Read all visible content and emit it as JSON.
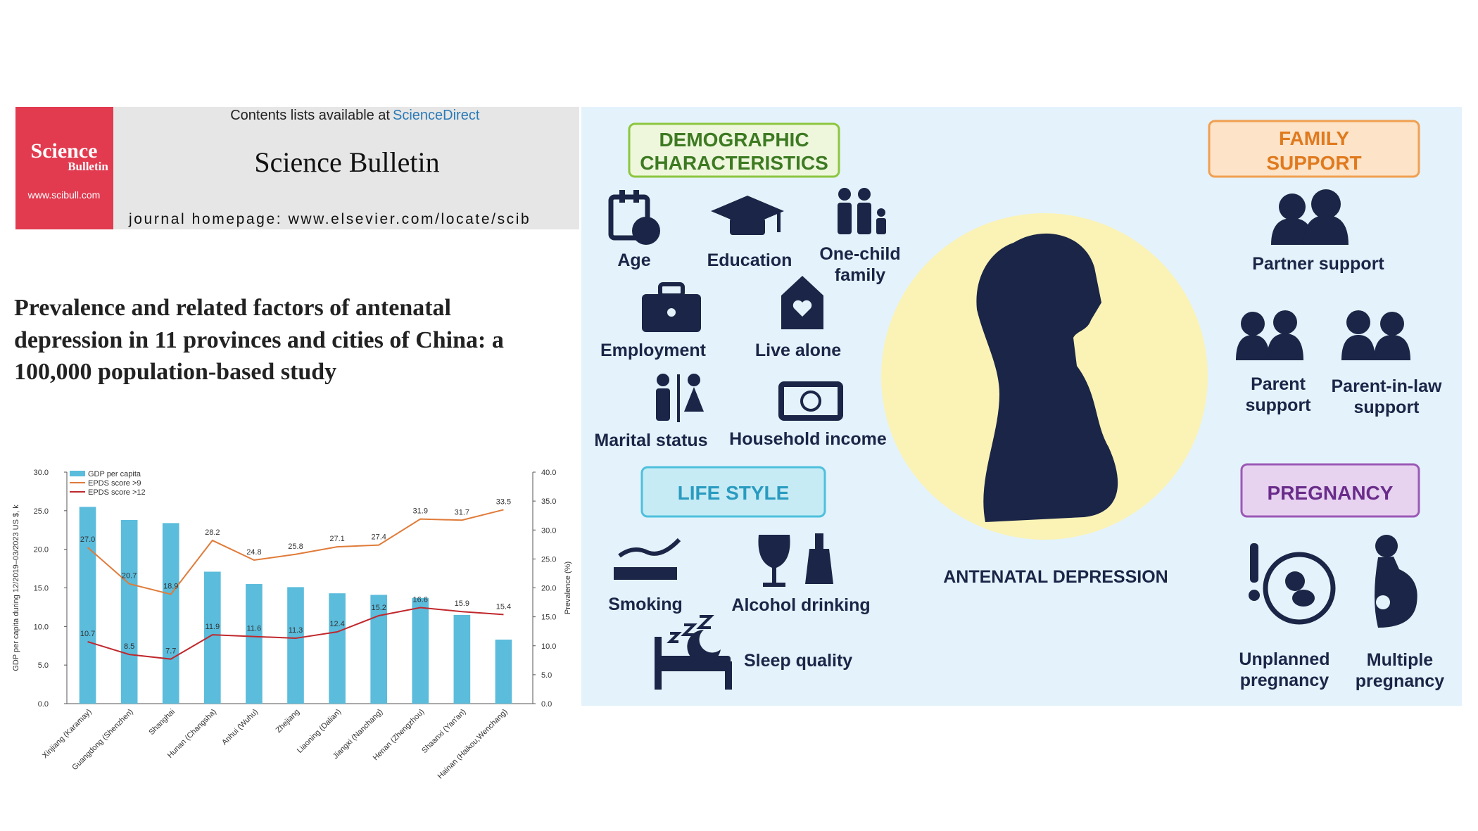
{
  "header": {
    "logo": {
      "line1": "Science",
      "line2": "Bulletin",
      "url": "www.scibull.com"
    },
    "contents_prefix": "Contents lists available at",
    "contents_link": "ScienceDirect",
    "journal": "Science Bulletin",
    "homepage": "journal homepage: www.elsevier.com/locate/scib"
  },
  "article_title": [
    "Prevalence and related factors of antenatal",
    "depression in 11 provinces and cities of China: a",
    "100,000 population-based study"
  ],
  "chart_data": {
    "type": "bar",
    "categories": [
      "Xinjiang (Karamay)",
      "Guangdong (Shenzhen)",
      "Shanghai",
      "Hunan (Changsha)",
      "Anhui (Wuhu)",
      "Zhejiang",
      "Liaoning (Dalian)",
      "Jiangxi (Nanchang)",
      "Henan (Zhengzhou)",
      "Shaanxi (Yan'an)",
      "Hainan (Haikou,Wenchang)"
    ],
    "series": [
      {
        "name": "GDP per capita",
        "type": "bar",
        "color": "#5bbcdc",
        "values": [
          25.5,
          23.8,
          23.4,
          17.1,
          15.5,
          15.1,
          14.3,
          14.1,
          13.7,
          11.5,
          8.3
        ]
      },
      {
        "name": "EPDS score >9",
        "type": "line",
        "axis": "y2",
        "color": "#e07b39",
        "values": [
          27,
          20.7,
          18.9,
          28.2,
          24.8,
          25.8,
          27.1,
          27.4,
          31.9,
          31.7,
          33.5
        ],
        "value_labels": [
          "27.0",
          "20.7",
          "18.9",
          "28.2",
          "24.8",
          "25.8",
          "27.1",
          "27.4",
          "31.9",
          "31.7",
          "33.5"
        ]
      },
      {
        "name": "EPDS score >12",
        "type": "line",
        "axis": "y2",
        "color": "#c0282d",
        "values": [
          10.7,
          8.5,
          7.7,
          11.9,
          11.6,
          11.3,
          12.4,
          15.2,
          16.6,
          15.9,
          15.4
        ],
        "value_labels": [
          "10.7",
          "8.5",
          "7.7",
          "11.9",
          "11.6",
          "11.3",
          "12.4",
          "15.2",
          "16.6",
          "15.9",
          "15.4"
        ]
      }
    ],
    "ylabel": "GDP per capita during 12/2019–03/2023 US $, k",
    "y2label": "Prevalence (%)",
    "ylim": [
      0,
      30
    ],
    "yticks": [
      {
        "value": 0,
        "label": "0.0"
      },
      {
        "value": 5,
        "label": "5.0"
      },
      {
        "value": 10,
        "label": "10.0"
      },
      {
        "value": 15,
        "label": "15.0"
      },
      {
        "value": 20,
        "label": "20.0"
      },
      {
        "value": 25,
        "label": "25.0"
      },
      {
        "value": 30,
        "label": "30.0"
      }
    ],
    "y2lim": [
      0,
      40
    ],
    "y2ticks": [
      {
        "value": 0,
        "label": "0.0"
      },
      {
        "value": 5,
        "label": "5.0"
      },
      {
        "value": 10,
        "label": "10.0"
      },
      {
        "value": 15,
        "label": "15.0"
      },
      {
        "value": 20,
        "label": "20.0"
      },
      {
        "value": 25,
        "label": "25.0"
      },
      {
        "value": 30,
        "label": "30.0"
      },
      {
        "value": 35,
        "label": "35.0"
      },
      {
        "value": 40,
        "label": "40.0"
      }
    ],
    "legend": "upper left"
  },
  "infographic": {
    "center_label": "ANTENATAL  DEPRESSION",
    "sections": [
      {
        "title": [
          "DEMOGRAPHIC",
          "CHARACTERISTICS"
        ],
        "items": [
          [
            "Age"
          ],
          [
            "Education"
          ],
          [
            "One-child",
            "family"
          ],
          [
            "Employment"
          ],
          [
            "Live alone"
          ],
          [
            "Marital status"
          ],
          [
            "Household income"
          ]
        ]
      },
      {
        "title": [
          "LIFE STYLE"
        ],
        "items": [
          [
            "Smoking"
          ],
          [
            "Alcohol drinking"
          ],
          [
            "Sleep quality"
          ]
        ]
      },
      {
        "title": [
          "FAMILY",
          "SUPPORT"
        ],
        "items": [
          [
            "Partner support"
          ],
          [
            "Parent",
            "support"
          ],
          [
            "Parent-in-law",
            "support"
          ]
        ]
      },
      {
        "title": [
          "PREGNANCY"
        ],
        "items": [
          [
            "Unplanned",
            "pregnancy"
          ],
          [
            "Multiple",
            "pregnancy"
          ]
        ]
      }
    ]
  }
}
